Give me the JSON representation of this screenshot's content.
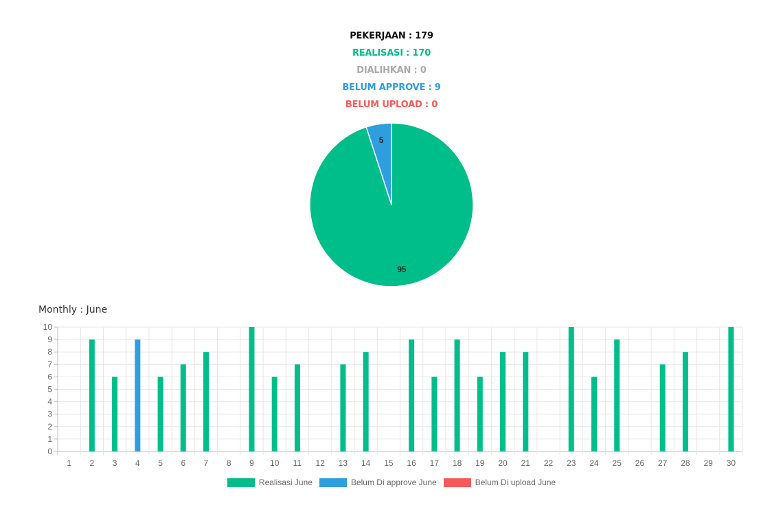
{
  "summary": {
    "pekerjaan": "PEKERJAAN : 179",
    "realisasi": "REALISASI : 170",
    "dialihkan": "DIALIHKAN : 0",
    "belum_approve": "BELUM APPROVE : 9",
    "belum_upload": "BELUM UPLOAD : 0"
  },
  "colors": {
    "black": "#111111",
    "green": "#00be8a",
    "gray": "#a9a9a9",
    "blue": "#2e9ede",
    "red": "#f55a5a"
  },
  "monthly_title": "Monthly : June",
  "chart_data": [
    {
      "type": "pie",
      "slices": [
        {
          "label": "Realisasi",
          "value": 95,
          "color": "#00be8a"
        },
        {
          "label": "Belum Approve",
          "value": 5,
          "color": "#2e9ede"
        }
      ]
    },
    {
      "type": "bar",
      "title": "Monthly : June",
      "categories": [
        "1",
        "2",
        "3",
        "4",
        "5",
        "6",
        "7",
        "8",
        "9",
        "10",
        "11",
        "12",
        "13",
        "14",
        "15",
        "16",
        "17",
        "18",
        "19",
        "20",
        "21",
        "22",
        "23",
        "24",
        "25",
        "26",
        "27",
        "28",
        "29",
        "30"
      ],
      "series": [
        {
          "name": "Realisasi June",
          "color": "#00be8a",
          "values": [
            0,
            9,
            6,
            0,
            6,
            7,
            8,
            0,
            10,
            6,
            7,
            0,
            7,
            8,
            0,
            9,
            6,
            9,
            6,
            8,
            8,
            0,
            10,
            6,
            9,
            0,
            7,
            8,
            0,
            10
          ]
        },
        {
          "name": "Belum Di approve June",
          "color": "#2e9ede",
          "values": [
            0,
            0,
            0,
            9,
            0,
            0,
            0,
            0,
            0,
            0,
            0,
            0,
            0,
            0,
            0,
            0,
            0,
            0,
            0,
            0,
            0,
            0,
            0,
            0,
            0,
            0,
            0,
            0,
            0,
            0
          ]
        },
        {
          "name": "Belum Di upload June",
          "color": "#f55a5a",
          "values": [
            0,
            0,
            0,
            0,
            0,
            0,
            0,
            0,
            0,
            0,
            0,
            0,
            0,
            0,
            0,
            0,
            0,
            0,
            0,
            0,
            0,
            0,
            0,
            0,
            0,
            0,
            0,
            0,
            0,
            0
          ]
        }
      ],
      "ylim": [
        0,
        10
      ],
      "yticks": [
        0,
        1,
        2,
        3,
        4,
        5,
        6,
        7,
        8,
        9,
        10
      ],
      "grid": true,
      "legend": "bottom"
    }
  ]
}
